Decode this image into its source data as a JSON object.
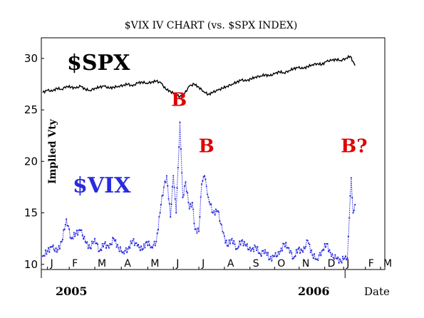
{
  "chart_data": {
    "type": "line",
    "title": "$VIX IV CHART (vs. $SPX INDEX)",
    "ylabel": "Implied Vty",
    "xlabel": "Date",
    "ylim": [
      9.5,
      32
    ],
    "yticks": [
      10,
      15,
      20,
      25,
      30
    ],
    "month_ticks": [
      "J",
      "F",
      "M",
      "A",
      "M",
      "J",
      "J",
      "A",
      "S",
      "O",
      "N",
      "D",
      "J",
      "F",
      "M"
    ],
    "years": [
      "2005",
      "2006"
    ],
    "grid": false,
    "series": [
      {
        "name": "$SPX",
        "color": "#000000",
        "x": [
          0,
          5,
          10,
          15,
          20,
          25,
          30,
          35,
          40,
          45,
          50,
          55,
          60,
          65,
          70,
          75,
          80,
          85,
          90,
          95,
          100,
          105,
          110,
          115,
          120,
          125,
          130,
          135,
          140,
          145,
          150,
          155,
          160,
          165,
          170,
          175,
          180,
          185,
          190,
          195,
          200,
          205,
          210,
          215,
          220,
          225,
          230,
          235,
          240,
          245,
          250,
          255,
          260,
          265,
          270,
          275,
          280,
          285,
          290,
          295,
          300,
          305,
          310,
          315,
          320,
          325,
          330
        ],
        "values": [
          26.7,
          26.9,
          26.8,
          27.1,
          27.0,
          27.3,
          27.2,
          27.1,
          27.3,
          27.0,
          26.9,
          27.1,
          27.2,
          27.3,
          27.1,
          27.2,
          27.3,
          27.4,
          27.5,
          27.3,
          27.6,
          27.7,
          27.6,
          27.7,
          27.8,
          27.6,
          27.0,
          26.8,
          26.5,
          26.3,
          26.6,
          27.3,
          27.5,
          27.2,
          26.8,
          26.5,
          26.7,
          26.9,
          27.1,
          27.3,
          27.5,
          27.7,
          27.9,
          27.8,
          28.0,
          28.2,
          28.3,
          28.4,
          28.3,
          28.5,
          28.7,
          28.6,
          28.8,
          29.0,
          29.1,
          29.0,
          29.2,
          29.4,
          29.5,
          29.4,
          29.7,
          29.8,
          29.9,
          29.8,
          30.0,
          30.2,
          29.3
        ]
      },
      {
        "name": "$VIX",
        "color": "#2a2adf",
        "x": [
          0,
          5,
          10,
          15,
          20,
          25,
          30,
          35,
          40,
          45,
          50,
          55,
          60,
          65,
          70,
          75,
          80,
          85,
          90,
          95,
          100,
          105,
          110,
          115,
          120,
          125,
          128,
          131,
          135,
          138,
          141,
          145,
          148,
          151,
          155,
          158,
          161,
          165,
          168,
          171,
          175,
          180,
          185,
          190,
          195,
          200,
          205,
          210,
          215,
          220,
          225,
          230,
          235,
          240,
          245,
          250,
          255,
          260,
          265,
          270,
          275,
          280,
          285,
          290,
          295,
          300,
          305,
          310,
          315,
          320,
          322,
          324,
          326,
          328,
          330
        ],
        "values": [
          10.8,
          11.3,
          11.7,
          11.2,
          12.2,
          14.4,
          12.5,
          13.0,
          13.3,
          12.2,
          11.6,
          12.5,
          11.3,
          12.0,
          11.6,
          12.5,
          11.6,
          11.2,
          11.5,
          12.3,
          11.8,
          11.4,
          12.2,
          11.7,
          12.2,
          15.8,
          17.5,
          18.6,
          14.6,
          18.6,
          15.0,
          23.8,
          16.5,
          18.0,
          15.4,
          16.0,
          13.4,
          13.2,
          17.8,
          18.6,
          16.5,
          15.0,
          15.2,
          13.2,
          11.8,
          12.5,
          11.5,
          12.3,
          11.8,
          11.3,
          11.7,
          11.0,
          11.4,
          10.5,
          10.8,
          11.0,
          12.0,
          11.6,
          10.6,
          11.5,
          11.2,
          12.3,
          10.9,
          10.5,
          11.3,
          12.0,
          10.8,
          10.6,
          10.3,
          10.8,
          10.6,
          14.5,
          18.4,
          15.0,
          15.8
        ]
      }
    ],
    "x_range": [
      0,
      330
    ],
    "month_positions": [
      5,
      28,
      55,
      83,
      111,
      138,
      165,
      192,
      219,
      245,
      271,
      298,
      318,
      341,
      357
    ],
    "annotations": {
      "spx_label": "$SPX",
      "vix_label": "$VIX",
      "signals": [
        {
          "text": "B",
          "x": 144,
          "y": 25.4
        },
        {
          "text": "B",
          "x": 173,
          "y": 20.9
        },
        {
          "text": "B?",
          "x": 329,
          "y": 20.9
        }
      ]
    },
    "signal_color": "#e00000"
  }
}
